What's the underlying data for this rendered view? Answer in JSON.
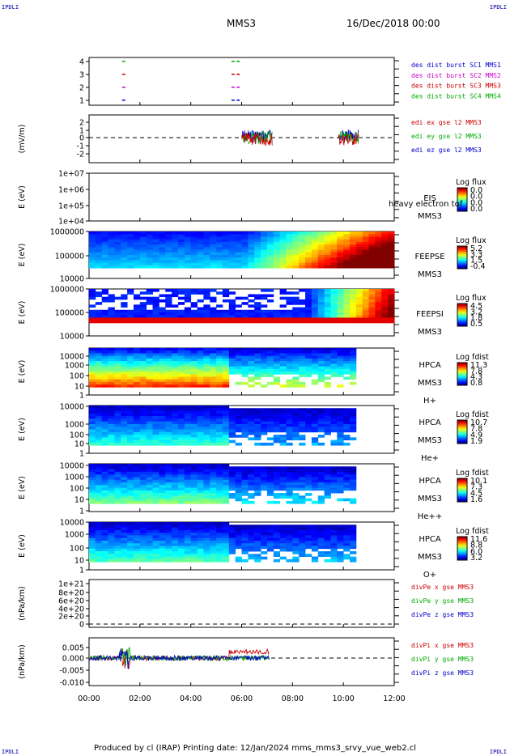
{
  "corner_marks": [
    "IPDLI",
    "IPDLI",
    "IPDLI",
    "IPDLI"
  ],
  "header": {
    "title": "MMS3",
    "date": "16/Dec/2018 00:00"
  },
  "footer": "Produced by cl (IRAP)   Printing date: 12/Jan/2024   mms_mms3_srvy_vue_web2.cl",
  "chart_data": {
    "type": "multi-panel",
    "x_ticks": [
      "00:00",
      "02:00",
      "04:00",
      "06:00",
      "08:00",
      "10:00",
      "12:00"
    ],
    "xlim_hours": [
      0,
      12
    ],
    "panels": [
      {
        "kind": "line",
        "yticks": [
          "4",
          "3",
          "2",
          "1"
        ],
        "ylabel": "",
        "series": [
          {
            "name": "des dist burst SC1 MMS1",
            "color": "#0000cc"
          },
          {
            "name": "des dist burst SC2 MMS2",
            "color": "#cc00cc"
          },
          {
            "name": "des dist burst SC3 MMS3",
            "color": "#cc0000"
          },
          {
            "name": "des dist burst SC4 MMS4",
            "color": "#00aa00"
          }
        ]
      },
      {
        "kind": "line",
        "yticks": [
          "2",
          "1",
          "0",
          "-1",
          "-2"
        ],
        "ylabel": "(mV/m)",
        "series": [
          {
            "name": "edi ex gse l2 MMS3",
            "color": "#cc0000"
          },
          {
            "name": "edi ey gse l2 MMS3",
            "color": "#00aa00"
          },
          {
            "name": "edi ez gse l2 MMS3",
            "color": "#0000cc"
          }
        ]
      },
      {
        "kind": "spectrogram",
        "yticks": [
          "1e+07",
          "1e+06",
          "1e+05",
          "1e+04"
        ],
        "ylabel": "E (eV)",
        "labels": [
          "EIS",
          "MMS3"
        ],
        "overlay": "heavy electron tof",
        "cbar_title": "Log flux",
        "cbar_ticks": [
          "0.0",
          "0.0",
          "0.0",
          "0.0"
        ]
      },
      {
        "kind": "spectrogram",
        "yticks": [
          "1000000",
          "100000",
          "10000"
        ],
        "ylabel": "E (eV)",
        "labels": [
          "FEEPSE",
          "MMS3"
        ],
        "cbar_title": "Log flux",
        "cbar_ticks": [
          "5.2",
          "3.3",
          "1.5",
          "-0.4"
        ]
      },
      {
        "kind": "spectrogram",
        "yticks": [
          "1000000",
          "100000",
          "10000"
        ],
        "ylabel": "E (eV)",
        "labels": [
          "FEEPSI",
          "MMS3"
        ],
        "cbar_title": "Log flux",
        "cbar_ticks": [
          "4.5",
          "3.2",
          "1.8",
          "0.5"
        ]
      },
      {
        "kind": "spectrogram",
        "yticks": [
          "10000",
          "1000",
          "100",
          "10",
          "1"
        ],
        "ylabel": "E (eV)",
        "labels": [
          "HPCA",
          "MMS3",
          "H+"
        ],
        "cbar_title": "Log fdist",
        "cbar_ticks": [
          "11.3",
          "7.8",
          "4.3",
          "0.8"
        ]
      },
      {
        "kind": "spectrogram",
        "yticks": [
          "10000",
          "1000",
          "100",
          "10",
          "1"
        ],
        "ylabel": "E (eV)",
        "labels": [
          "HPCA",
          "MMS3",
          "He+"
        ],
        "cbar_title": "Log fdist",
        "cbar_ticks": [
          "10.7",
          "7.8",
          "4.9",
          "1.9"
        ]
      },
      {
        "kind": "spectrogram",
        "yticks": [
          "10000",
          "1000",
          "100",
          "10",
          "1"
        ],
        "ylabel": "E (eV)",
        "labels": [
          "HPCA",
          "MMS3",
          "He++"
        ],
        "cbar_title": "Log fdist",
        "cbar_ticks": [
          "10.1",
          "7.3",
          "4.5",
          "1.6"
        ]
      },
      {
        "kind": "spectrogram",
        "yticks": [
          "10000",
          "1000",
          "100",
          "10",
          "1"
        ],
        "ylabel": "E (eV)",
        "labels": [
          "HPCA",
          "MMS3",
          "O+"
        ],
        "cbar_title": "Log fdist",
        "cbar_ticks": [
          "11.6",
          "8.8",
          "6.0",
          "3.2"
        ]
      },
      {
        "kind": "line",
        "yticks": [
          "1e+21",
          "8e+20",
          "6e+20",
          "4e+20",
          "2e+20",
          "0"
        ],
        "ylabel": "(nPa/km)",
        "series": [
          {
            "name": "divPe x gse MMS3",
            "color": "#cc0000"
          },
          {
            "name": "divPe y gse MMS3",
            "color": "#00aa00"
          },
          {
            "name": "divPe z gse MMS3",
            "color": "#0000cc"
          }
        ]
      },
      {
        "kind": "line",
        "yticks": [
          "0.005",
          "0.000",
          "-0.005",
          "-0.010"
        ],
        "ylabel": "(nPa/km)",
        "series": [
          {
            "name": "divPi x gse MMS3",
            "color": "#cc0000"
          },
          {
            "name": "divPi y gse MMS3",
            "color": "#00aa00"
          },
          {
            "name": "divPi z gse MMS3",
            "color": "#0000cc"
          }
        ]
      }
    ]
  }
}
